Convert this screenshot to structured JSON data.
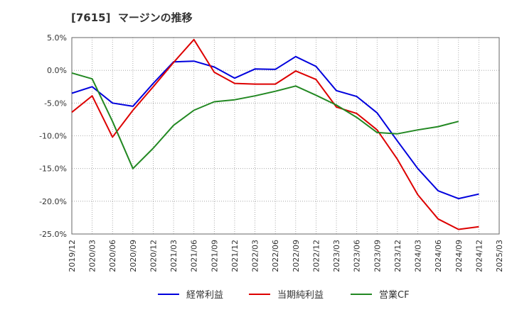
{
  "chart_data": {
    "type": "line",
    "title": "[7615]  マージンの推移",
    "xlabel": "",
    "ylabel": "",
    "x": [
      "2019/12",
      "2020/03",
      "2020/06",
      "2020/09",
      "2020/12",
      "2021/03",
      "2021/06",
      "2021/09",
      "2021/12",
      "2022/03",
      "2022/06",
      "2022/09",
      "2022/12",
      "2023/03",
      "2023/06",
      "2023/09",
      "2023/12",
      "2024/03",
      "2024/06",
      "2024/09",
      "2024/12",
      "2025/03"
    ],
    "ylim": [
      -25,
      5
    ],
    "yticks": [
      5,
      0,
      -5,
      -10,
      -15,
      -20,
      -25
    ],
    "ytick_labels": [
      "5.0%",
      "0.0%",
      "-5.0%",
      "-10.0%",
      "-15.0%",
      "-20.0%",
      "-25.0%"
    ],
    "grid": true,
    "legend_position": "bottom",
    "series": [
      {
        "name": "経常利益",
        "color": "#0000dd",
        "values": [
          -3.5,
          -2.5,
          -5.0,
          -5.5,
          -2.0,
          1.3,
          1.4,
          0.5,
          -1.2,
          0.2,
          0.15,
          2.1,
          0.6,
          -3.1,
          -4.0,
          -6.5,
          -10.8,
          -15.0,
          -18.4,
          -19.6,
          -18.9,
          null
        ]
      },
      {
        "name": "当期純利益",
        "color": "#dd0000",
        "values": [
          -6.4,
          -3.9,
          -10.2,
          -6.1,
          -2.5,
          1.2,
          4.7,
          -0.3,
          -2.0,
          -2.1,
          -2.1,
          -0.1,
          -1.4,
          -5.6,
          -6.6,
          -9.1,
          -13.6,
          -19.0,
          -22.7,
          -24.3,
          -23.9,
          null
        ]
      },
      {
        "name": "営業CF",
        "color": "#228822",
        "values": [
          -0.4,
          -1.3,
          -7.8,
          -15.0,
          -11.9,
          -8.4,
          -6.1,
          -4.8,
          -4.5,
          -3.9,
          -3.2,
          -2.4,
          -3.8,
          -5.3,
          -7.2,
          -9.5,
          -9.7,
          -9.1,
          -8.6,
          -7.8,
          null,
          null
        ]
      }
    ]
  }
}
